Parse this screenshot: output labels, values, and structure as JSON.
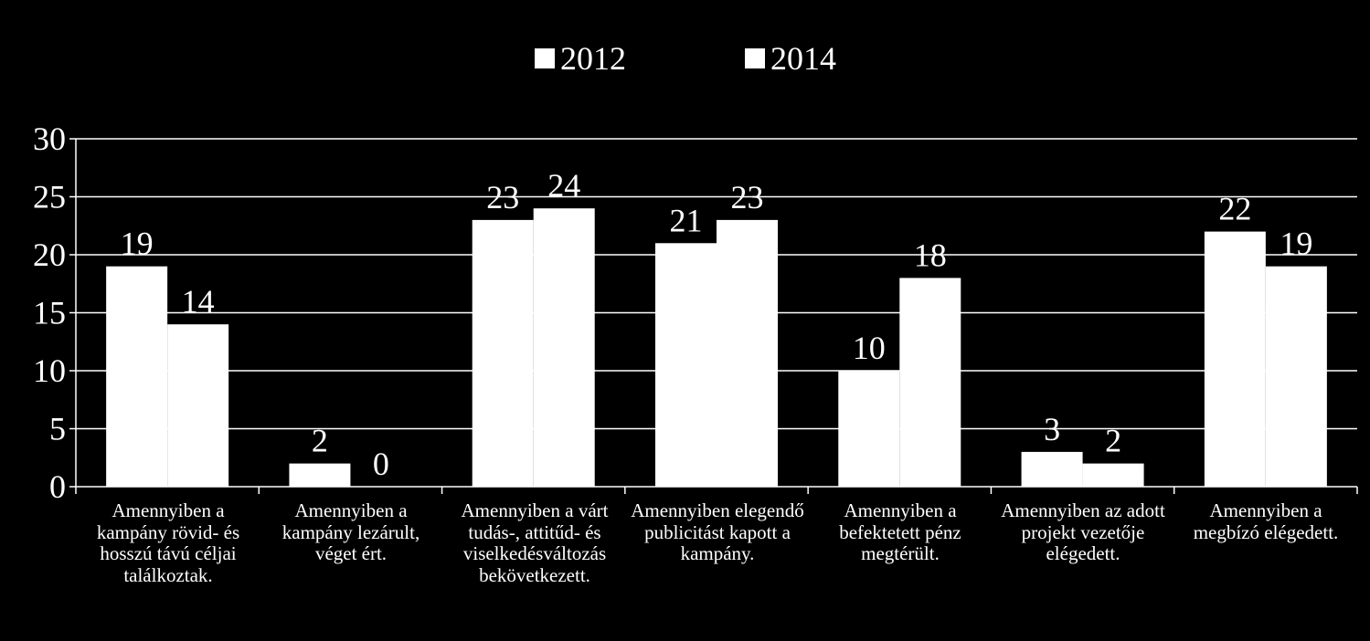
{
  "chart_data": {
    "type": "bar",
    "title": "",
    "xlabel": "",
    "ylabel": "",
    "ylim": [
      0,
      30
    ],
    "yticks": [
      "0",
      "5",
      "10",
      "15",
      "20",
      "25",
      "30"
    ],
    "grid": true,
    "legend_position": "top",
    "categories": [
      "Amennyiben a kampány rövid- és hosszú távú céljai találkoztak.",
      "Amennyiben a kampány lezárult, véget ért.",
      "Amennyiben a várt tudás-, attitűd- és viselkedésváltozás bekövetkezett.",
      "Amennyiben elegendő publicitást kapott a kampány.",
      "Amennyiben a befektetett pénz megtérült.",
      "Amennyiben az adott projekt vezetője elégedett.",
      "Amennyiben a megbízó elégedett."
    ],
    "series": [
      {
        "name": "2012",
        "values": [
          19,
          2,
          23,
          21,
          10,
          3,
          22
        ],
        "color": "#ffffff"
      },
      {
        "name": "2014",
        "values": [
          14,
          0,
          24,
          23,
          18,
          2,
          19
        ],
        "color": "#ffffff"
      }
    ],
    "colors": {
      "background": "#000000",
      "foreground": "#ffffff"
    }
  }
}
